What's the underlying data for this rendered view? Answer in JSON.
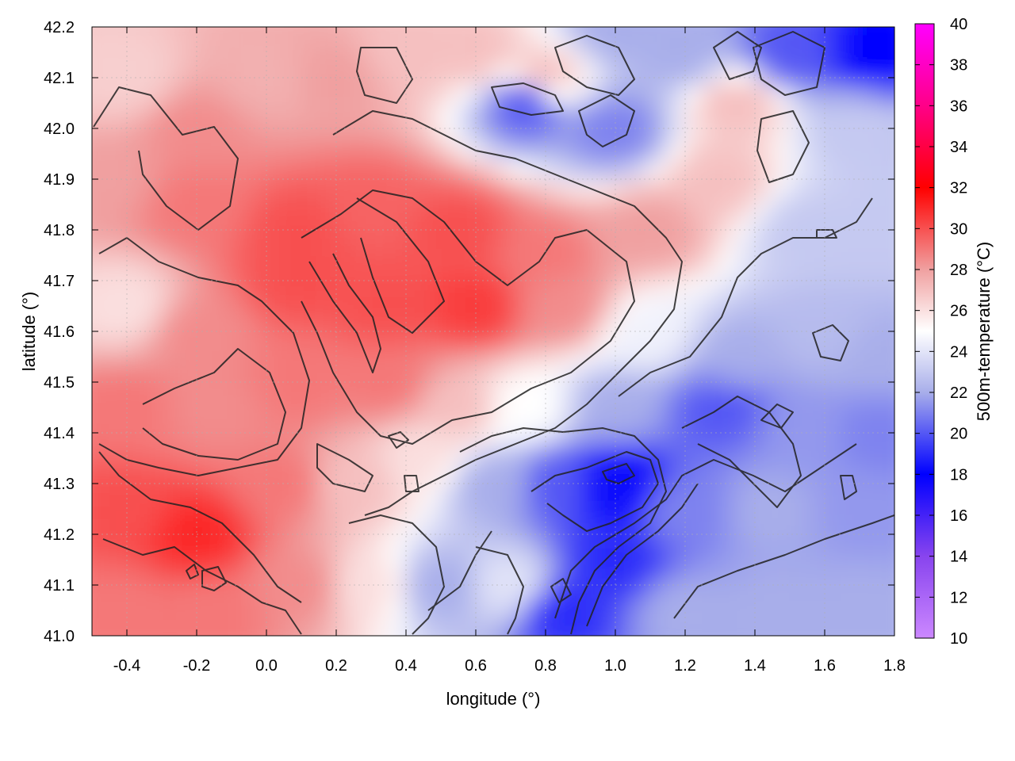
{
  "chart_data": {
    "type": "heatmap",
    "title": "",
    "xlabel": "longitude (°)",
    "ylabel": "latitude (°)",
    "colorbar_label": "500m-temperature (°C)",
    "xlim": [
      -0.5,
      1.8
    ],
    "ylim": [
      41.0,
      42.2
    ],
    "x_ticks": [
      "-0.4",
      "-0.2",
      "0.0",
      "0.2",
      "0.4",
      "0.6",
      "0.8",
      "1.0",
      "1.2",
      "1.4",
      "1.6",
      "1.8"
    ],
    "y_ticks": [
      "41.0",
      "41.1",
      "41.2",
      "41.3",
      "41.4",
      "41.5",
      "41.6",
      "41.7",
      "41.8",
      "41.9",
      "42.0",
      "42.1",
      "42.2"
    ],
    "colorbar_ticks": [
      "10",
      "12",
      "14",
      "16",
      "18",
      "20",
      "22",
      "24",
      "26",
      "28",
      "30",
      "32",
      "34",
      "36",
      "38",
      "40"
    ],
    "colorbar_range": [
      10,
      40
    ],
    "colormap": [
      {
        "value": 10,
        "color": "#cc88ff"
      },
      {
        "value": 14,
        "color": "#8844ee"
      },
      {
        "value": 18,
        "color": "#0000ff"
      },
      {
        "value": 22,
        "color": "#a8aeea"
      },
      {
        "value": 25,
        "color": "#ffffff"
      },
      {
        "value": 28,
        "color": "#f0a0a0"
      },
      {
        "value": 32,
        "color": "#ff0000"
      },
      {
        "value": 36,
        "color": "#ff0088"
      },
      {
        "value": 40,
        "color": "#ff00ff"
      }
    ],
    "grid": true,
    "contours": true,
    "field_samples": [
      {
        "lon": -0.4,
        "lat": 42.1,
        "t": 26.5
      },
      {
        "lon": -0.2,
        "lat": 42.0,
        "t": 28.5
      },
      {
        "lon": 0.0,
        "lat": 42.1,
        "t": 27.5
      },
      {
        "lon": 0.2,
        "lat": 42.1,
        "t": 28
      },
      {
        "lon": 0.4,
        "lat": 42.15,
        "t": 27
      },
      {
        "lon": 0.6,
        "lat": 42.15,
        "t": 27
      },
      {
        "lon": 0.8,
        "lat": 42.1,
        "t": 27
      },
      {
        "lon": 1.0,
        "lat": 42.2,
        "t": 22
      },
      {
        "lon": 1.2,
        "lat": 42.15,
        "t": 22
      },
      {
        "lon": 1.35,
        "lat": 42.05,
        "t": 27
      },
      {
        "lon": 1.5,
        "lat": 42.15,
        "t": 20
      },
      {
        "lon": 1.75,
        "lat": 42.15,
        "t": 18
      },
      {
        "lon": 1.7,
        "lat": 42.0,
        "t": 23
      },
      {
        "lon": 0.75,
        "lat": 42.05,
        "t": 20
      },
      {
        "lon": 1.0,
        "lat": 42.0,
        "t": 21
      },
      {
        "lon": -0.45,
        "lat": 41.9,
        "t": 28
      },
      {
        "lon": -0.2,
        "lat": 41.85,
        "t": 29
      },
      {
        "lon": 0.1,
        "lat": 41.8,
        "t": 30
      },
      {
        "lon": 0.3,
        "lat": 41.85,
        "t": 29.5
      },
      {
        "lon": 0.55,
        "lat": 41.8,
        "t": 30
      },
      {
        "lon": 0.8,
        "lat": 41.75,
        "t": 29
      },
      {
        "lon": 1.1,
        "lat": 41.8,
        "t": 28
      },
      {
        "lon": 1.3,
        "lat": 41.9,
        "t": 27
      },
      {
        "lon": 1.55,
        "lat": 41.8,
        "t": 23
      },
      {
        "lon": 1.75,
        "lat": 41.8,
        "t": 23
      },
      {
        "lon": -0.4,
        "lat": 41.65,
        "t": 26
      },
      {
        "lon": -0.2,
        "lat": 41.6,
        "t": 28.5
      },
      {
        "lon": 0.1,
        "lat": 41.7,
        "t": 30
      },
      {
        "lon": 0.35,
        "lat": 41.65,
        "t": 30
      },
      {
        "lon": 0.6,
        "lat": 41.65,
        "t": 30.5
      },
      {
        "lon": 0.85,
        "lat": 41.65,
        "t": 28.5
      },
      {
        "lon": 1.1,
        "lat": 41.6,
        "t": 24.5
      },
      {
        "lon": 1.35,
        "lat": 41.55,
        "t": 22
      },
      {
        "lon": 1.6,
        "lat": 41.6,
        "t": 22.5
      },
      {
        "lon": 1.75,
        "lat": 41.55,
        "t": 22
      },
      {
        "lon": -0.4,
        "lat": 41.45,
        "t": 29
      },
      {
        "lon": -0.15,
        "lat": 41.45,
        "t": 28.5
      },
      {
        "lon": 0.1,
        "lat": 41.5,
        "t": 29
      },
      {
        "lon": 0.35,
        "lat": 41.5,
        "t": 29
      },
      {
        "lon": 0.55,
        "lat": 41.45,
        "t": 27
      },
      {
        "lon": 0.75,
        "lat": 41.45,
        "t": 25
      },
      {
        "lon": 1.0,
        "lat": 41.45,
        "t": 22
      },
      {
        "lon": 1.3,
        "lat": 41.45,
        "t": 20
      },
      {
        "lon": 1.55,
        "lat": 41.4,
        "t": 21.5
      },
      {
        "lon": 1.75,
        "lat": 41.4,
        "t": 21
      },
      {
        "lon": -0.4,
        "lat": 41.25,
        "t": 30
      },
      {
        "lon": -0.2,
        "lat": 41.2,
        "t": 31
      },
      {
        "lon": 0.05,
        "lat": 41.3,
        "t": 29
      },
      {
        "lon": 0.25,
        "lat": 41.3,
        "t": 27
      },
      {
        "lon": 0.45,
        "lat": 41.35,
        "t": 26
      },
      {
        "lon": 0.65,
        "lat": 41.3,
        "t": 22
      },
      {
        "lon": 0.85,
        "lat": 41.3,
        "t": 20
      },
      {
        "lon": 1.0,
        "lat": 41.3,
        "t": 17.5
      },
      {
        "lon": 1.2,
        "lat": 41.25,
        "t": 21
      },
      {
        "lon": 1.45,
        "lat": 41.25,
        "t": 22
      },
      {
        "lon": 1.7,
        "lat": 41.25,
        "t": 21.5
      },
      {
        "lon": -0.4,
        "lat": 41.05,
        "t": 29
      },
      {
        "lon": -0.15,
        "lat": 41.05,
        "t": 29
      },
      {
        "lon": 0.1,
        "lat": 41.1,
        "t": 28.5
      },
      {
        "lon": 0.3,
        "lat": 41.1,
        "t": 26
      },
      {
        "lon": 0.5,
        "lat": 41.1,
        "t": 22
      },
      {
        "lon": 0.7,
        "lat": 41.1,
        "t": 24
      },
      {
        "lon": 0.85,
        "lat": 41.05,
        "t": 19
      },
      {
        "lon": 1.0,
        "lat": 41.15,
        "t": 19
      },
      {
        "lon": 1.2,
        "lat": 41.05,
        "t": 22
      },
      {
        "lon": 1.45,
        "lat": 41.05,
        "t": 22
      },
      {
        "lon": 1.7,
        "lat": 41.05,
        "t": 22
      }
    ]
  }
}
